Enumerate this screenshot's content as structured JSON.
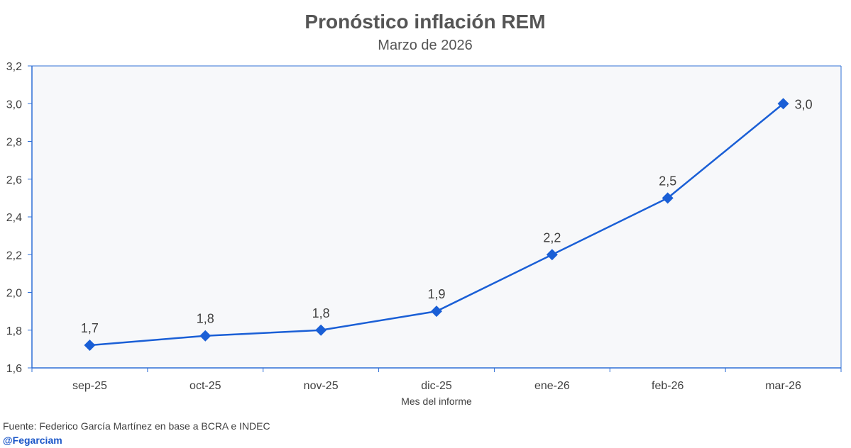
{
  "chart_data": {
    "type": "line",
    "title": "Pronóstico inflación REM",
    "subtitle": "Marzo de 2026",
    "xlabel": "Mes del informe",
    "ylabel": "",
    "categories": [
      "sep-25",
      "oct-25",
      "nov-25",
      "dic-25",
      "ene-26",
      "feb-26",
      "mar-26"
    ],
    "series": [
      {
        "name": "Pronóstico inflación REM",
        "values": [
          1.72,
          1.77,
          1.8,
          1.9,
          2.2,
          2.5,
          3.0
        ],
        "labels": [
          "1,7",
          "1,8",
          "1,8",
          "1,9",
          "2,2",
          "2,5",
          "3,0"
        ]
      }
    ],
    "ylim": [
      1.6,
      3.2
    ],
    "yticks": [
      1.6,
      1.8,
      2.0,
      2.2,
      2.4,
      2.6,
      2.8,
      3.0,
      3.2
    ],
    "ytick_labels": [
      "1,6",
      "1,8",
      "2,0",
      "2,2",
      "2,4",
      "2,6",
      "2,8",
      "3,0",
      "3,2"
    ],
    "grid": false,
    "legend": "none",
    "colors": {
      "line": "#1a5fd6",
      "marker": "#1a5fd6",
      "axis": "#2f6fd6",
      "plot_background": "#f7f8fa"
    }
  },
  "footer": {
    "source": "Fuente: Federico García Martínez en base a BCRA e INDEC",
    "handle": "@Fegarciam"
  }
}
